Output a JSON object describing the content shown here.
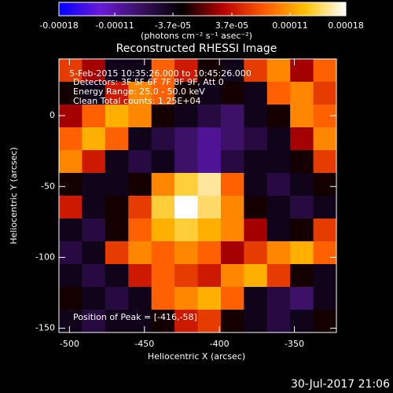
{
  "chart_data": {
    "type": "heatmap",
    "title": "Reconstructed RHESSI Image",
    "x_label": "Heliocentric X (arcsec)",
    "y_label": "Heliocentric Y (arcsec)",
    "colorbar_label": "(photons cm⁻² s⁻¹ asec⁻²)",
    "annotations": [
      "5-Feb-2015 10:35:26.000 to 10:45:26.000",
      "Detectors: 3F 5F 6F 7F 8F 9F, Att 0",
      "Energy Range: 25.0 - 50.0 keV",
      "Clean    Total counts: 1.25E+04"
    ],
    "peak_label": "Position of Peak = [-416,-58]",
    "footer": "30-Jul-2017 21:06",
    "xlim": [
      -507,
      -322
    ],
    "ylim": [
      -153,
      40
    ],
    "xticks": [
      -500,
      -450,
      -400,
      -350
    ],
    "yticks": [
      0,
      -50,
      -100,
      -150
    ],
    "zlim": [
      -0.00018,
      0.00018
    ],
    "zticks": [
      -0.00018,
      -0.00011,
      {
        "value": -3.7e-05,
        "label": "-3.7e-05"
      },
      {
        "value": 3.7e-05,
        "label": "3.7e-05"
      },
      0.00011,
      0.00018
    ],
    "colorscale": [
      "#0000ff",
      "#6a1ad8",
      "#3a1060",
      "#000000",
      "#b80000",
      "#ff5a00",
      "#ffc000",
      "#ffffff"
    ],
    "z": [
      [
        6e-05,
        2e-05,
        -4e-05,
        -4e-05,
        8e-05,
        4e-05,
        -2e-05,
        -4e-05,
        6e-05,
        0.0001,
        2e-05,
        8e-05
      ],
      [
        -2e-05,
        -4e-05,
        4e-05,
        0.0001,
        8e-05,
        -2e-05,
        -4e-05,
        -2e-05,
        -4e-05,
        8e-05,
        0.0001,
        6e-05
      ],
      [
        2e-05,
        8e-05,
        0.00012,
        0.0001,
        -2e-05,
        -4e-05,
        -6e-05,
        -8e-05,
        -4e-05,
        -2e-05,
        0.0001,
        8e-05
      ],
      [
        8e-05,
        0.00012,
        8e-05,
        -4e-05,
        -6e-05,
        -8e-05,
        -0.0001,
        -8e-05,
        -6e-05,
        -4e-05,
        2e-05,
        0.0001
      ],
      [
        0.0001,
        4e-05,
        -4e-05,
        -6e-05,
        -4e-05,
        -8e-05,
        -0.0001,
        -6e-05,
        -4e-05,
        -4e-05,
        -2e-05,
        6e-05
      ],
      [
        -2e-05,
        -4e-05,
        -4e-05,
        -2e-05,
        0.0001,
        0.00014,
        0.00016,
        8e-05,
        -4e-05,
        -6e-05,
        -4e-05,
        -2e-05
      ],
      [
        4e-05,
        -4e-05,
        -2e-05,
        6e-05,
        0.00014,
        0.00018,
        0.00015,
        0.0001,
        -2e-05,
        -4e-05,
        -6e-05,
        -4e-05
      ],
      [
        -4e-05,
        -6e-05,
        -2e-05,
        8e-05,
        0.00012,
        0.00014,
        0.00012,
        0.0001,
        2e-05,
        -4e-05,
        -2e-05,
        6e-05
      ],
      [
        -6e-05,
        -4e-05,
        6e-05,
        0.0001,
        8e-05,
        0.0001,
        8e-05,
        2e-05,
        6e-05,
        0.0001,
        0.00012,
        8e-05
      ],
      [
        -4e-05,
        -6e-05,
        -4e-05,
        4e-05,
        8e-05,
        6e-05,
        4e-05,
        0.0001,
        0.00012,
        6e-05,
        -2e-05,
        -4e-05
      ],
      [
        -2e-05,
        -4e-05,
        -6e-05,
        -4e-05,
        8e-05,
        0.0001,
        0.00012,
        8e-05,
        -4e-05,
        -6e-05,
        -8e-05,
        -4e-05
      ],
      [
        -4e-05,
        -6e-05,
        -4e-05,
        -4e-05,
        -2e-05,
        4e-05,
        6e-05,
        -2e-05,
        -4e-05,
        -6e-05,
        -4e-05,
        -2e-05
      ]
    ]
  }
}
